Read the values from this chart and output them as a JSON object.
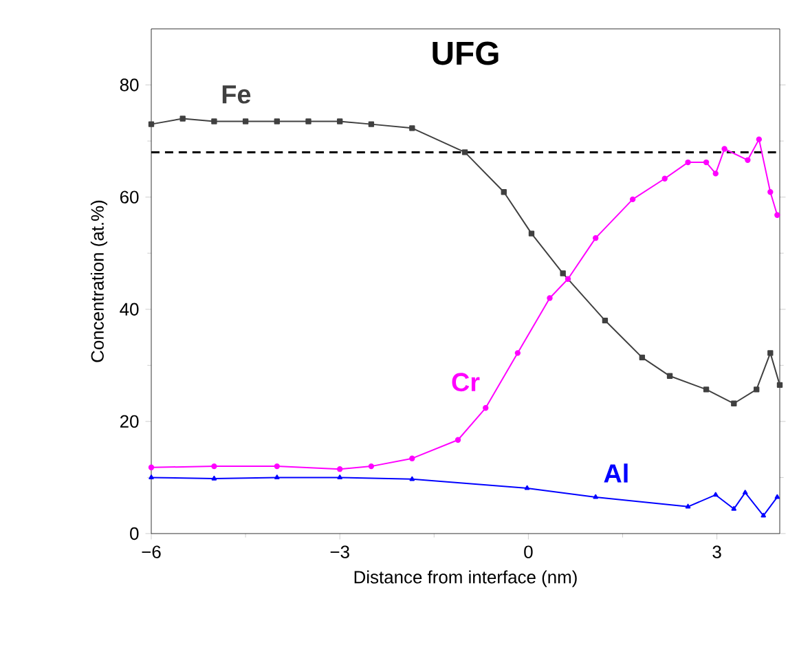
{
  "chart_data": {
    "type": "line",
    "title": "UFG",
    "xlabel": "Distance from interface (nm)",
    "ylabel": "Concentration (at.%)",
    "xlim": [
      -6,
      4
    ],
    "xticks": [
      {
        "value": -6,
        "label": "−6"
      },
      {
        "value": -3,
        "label": "−3"
      },
      0,
      3
    ],
    "ylim": [
      0,
      90
    ],
    "yticks": [
      0,
      20,
      40,
      60,
      80
    ],
    "grid": false,
    "ref_lines": [
      {
        "axis": "y",
        "value": 68,
        "line_style": "dashed",
        "color": "#000000"
      }
    ],
    "series": [
      {
        "name": "Fe",
        "color": "#404040",
        "marker": "square",
        "x": [
          -6,
          -5.5,
          -5,
          -4.5,
          -4,
          -3.5,
          -3,
          -2.5,
          -1.85,
          -1.01,
          -0.39,
          0.05,
          0.55,
          1.22,
          1.81,
          2.25,
          2.83,
          3.27,
          3.63,
          3.85,
          4.0
        ],
        "values": [
          73,
          74,
          73.5,
          73.5,
          73.5,
          73.5,
          73.5,
          73,
          72.3,
          68,
          60.9,
          53.5,
          46.4,
          38,
          31.4,
          28.1,
          25.7,
          23.2,
          25.7,
          32.2,
          26.5
        ]
      },
      {
        "name": "Cr",
        "color": "#ff00ff",
        "marker": "circle",
        "x": [
          -6,
          -5,
          -4,
          -3,
          -2.5,
          -1.85,
          -1.12,
          -0.68,
          -0.17,
          0.34,
          0.63,
          1.07,
          1.66,
          2.17,
          2.54,
          2.83,
          2.98,
          3.12,
          3.49,
          3.67,
          3.85,
          3.96
        ],
        "values": [
          11.8,
          12,
          12,
          11.5,
          12,
          13.4,
          16.7,
          22.4,
          32.2,
          42,
          45.4,
          52.7,
          59.6,
          63.3,
          66.2,
          66.2,
          64.2,
          68.6,
          66.6,
          70.3,
          60.9,
          56.8
        ]
      },
      {
        "name": "Al",
        "color": "#0000ff",
        "marker": "triangle",
        "x": [
          -6,
          -5,
          -4,
          -3,
          -1.85,
          -0.02,
          1.07,
          2.54,
          2.98,
          3.27,
          3.45,
          3.74,
          3.96
        ],
        "values": [
          10,
          9.8,
          10,
          10,
          9.7,
          8.1,
          6.5,
          4.8,
          6.9,
          4.4,
          7.3,
          3.2,
          6.5
        ]
      }
    ]
  }
}
